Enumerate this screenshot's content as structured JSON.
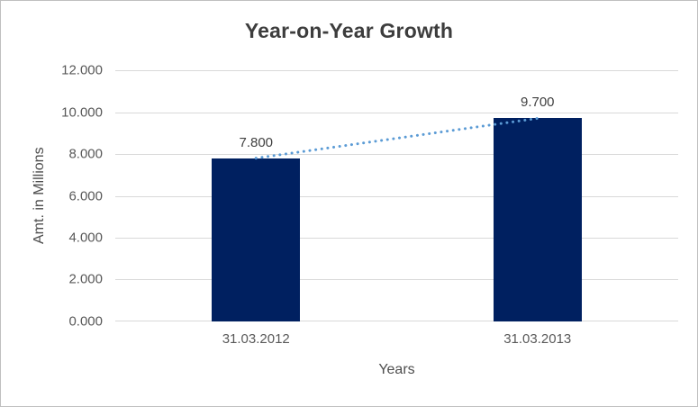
{
  "chart_data": {
    "type": "bar",
    "title": "Year-on-Year Growth",
    "categories": [
      "31.03.2012",
      "31.03.2013"
    ],
    "values": [
      7.8,
      9.7
    ],
    "data_labels": [
      "7.800",
      "9.700"
    ],
    "xlabel": "Years",
    "ylabel": "Amt. in Millions",
    "ylim": [
      0,
      12
    ],
    "ytick_step": 2,
    "ytick_labels": [
      "12.000",
      "10.000",
      "8.000",
      "6.000",
      "4.000",
      "2.000",
      "0.000"
    ],
    "grid": true,
    "legend": "none",
    "bar_color": "#002060",
    "gridline_color": "#d9d9d9",
    "trendline": {
      "type": "linear",
      "style": "dotted",
      "color": "#5b9bd5"
    }
  }
}
